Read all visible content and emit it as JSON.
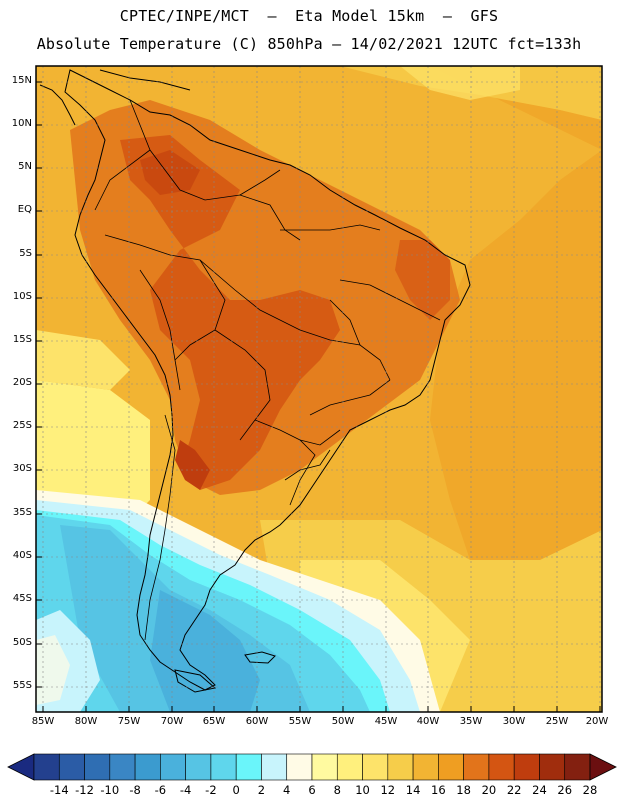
{
  "header": {
    "line1": "CPTEC/INPE/MCT  –  Eta Model 15km  –  GFS",
    "line2": "Absolute Temperature (C) 850hPa – 14/02/2021 12UTC fct=133h"
  },
  "map": {
    "lat_labels": [
      "15N",
      "10N",
      "5N",
      "EQ",
      "5S",
      "10S",
      "15S",
      "20S",
      "25S",
      "30S",
      "35S",
      "40S",
      "45S",
      "50S",
      "55S"
    ],
    "lon_labels": [
      "85W",
      "80W",
      "75W",
      "70W",
      "65W",
      "60W",
      "55W",
      "50W",
      "45W",
      "40W",
      "35W",
      "30W",
      "25W",
      "20W"
    ]
  },
  "colorbar": {
    "labels": [
      "-14",
      "-12",
      "-10",
      "-8",
      "-6",
      "-4",
      "-2",
      "0",
      "2",
      "4",
      "6",
      "8",
      "10",
      "12",
      "14",
      "16",
      "18",
      "20",
      "22",
      "24",
      "26",
      "28"
    ],
    "low_color": "#1a2a80",
    "high_color": "#6b0f10",
    "colors": [
      "#23408e",
      "#2b5ca6",
      "#2f6eb3",
      "#3a86c4",
      "#3b9bcf",
      "#4ab1dc",
      "#56c4e4",
      "#5fd6ec",
      "#6af5fa",
      "#c8f4fc",
      "#fffbe6",
      "#fffaa0",
      "#fff07d",
      "#fde36a",
      "#f6cd4a",
      "#f2b433",
      "#ef9e22",
      "#e2741b",
      "#d45512",
      "#bf3d0e",
      "#a02d0d",
      "#832010"
    ]
  },
  "palette": {
    "t12": "#fde36a",
    "t14": "#f6cd4a",
    "t16": "#f2b433",
    "t18": "#ef9e22",
    "t20": "#e2741b",
    "t22": "#d45512",
    "t24": "#bf3d0e",
    "t10": "#fff07d",
    "t8": "#fffaa0",
    "t6": "#fffbe6",
    "t4": "#c8f4fc",
    "t2": "#6af5fa",
    "t0": "#5fd6ec",
    "tm2": "#56c4e4",
    "tm4": "#4ab1dc"
  }
}
